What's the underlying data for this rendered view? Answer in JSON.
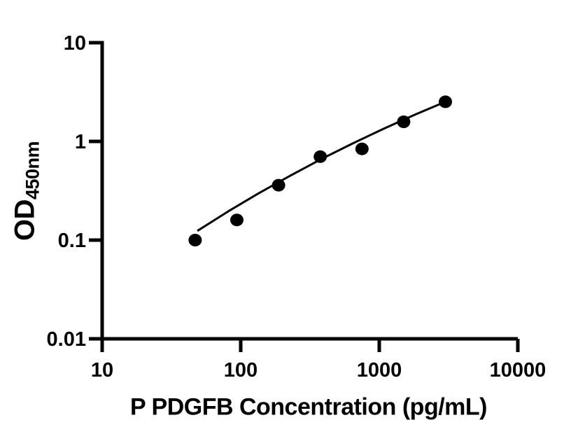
{
  "figure": {
    "background": "#ffffff"
  },
  "chart_data": {
    "type": "scatter",
    "title": "",
    "xlabel": "P PDGFB Concentration (pg/mL)",
    "ylabel": "OD",
    "ylabel_subscript": "450nm",
    "x_scale": "log",
    "y_scale": "log",
    "xlim": [
      10,
      10000
    ],
    "ylim": [
      0.01,
      10
    ],
    "grid": false,
    "legend": null,
    "x_ticks": [
      {
        "value": 10,
        "label": "10"
      },
      {
        "value": 100,
        "label": "100"
      },
      {
        "value": 1000,
        "label": "1000"
      },
      {
        "value": 10000,
        "label": "10000"
      }
    ],
    "y_ticks": [
      {
        "value": 10,
        "label": "10"
      },
      {
        "value": 1,
        "label": "1"
      },
      {
        "value": 0.1,
        "label": "0.1"
      },
      {
        "value": 0.01,
        "label": "0.01"
      }
    ],
    "series": [
      {
        "name": "fit-line",
        "type": "line",
        "points": [
          {
            "x": 48.7,
            "y": 0.124
          },
          {
            "x": 81,
            "y": 0.195
          },
          {
            "x": 136,
            "y": 0.3
          },
          {
            "x": 228,
            "y": 0.45
          },
          {
            "x": 380,
            "y": 0.66
          },
          {
            "x": 640,
            "y": 0.95
          },
          {
            "x": 1070,
            "y": 1.34
          },
          {
            "x": 1800,
            "y": 1.86
          },
          {
            "x": 3000,
            "y": 2.52
          }
        ]
      },
      {
        "name": "standard-points",
        "type": "scatter",
        "marker": "filled-circle",
        "points": [
          {
            "x": 46.88,
            "y": 0.1
          },
          {
            "x": 93.75,
            "y": 0.16
          },
          {
            "x": 187.5,
            "y": 0.36
          },
          {
            "x": 375,
            "y": 0.7
          },
          {
            "x": 750,
            "y": 0.84
          },
          {
            "x": 1500,
            "y": 1.58
          },
          {
            "x": 3000,
            "y": 2.52
          }
        ]
      }
    ],
    "colors": {
      "axis": "#000000",
      "marker": "#000000",
      "line": "#000000",
      "text": "#000000",
      "background": "#ffffff"
    }
  }
}
